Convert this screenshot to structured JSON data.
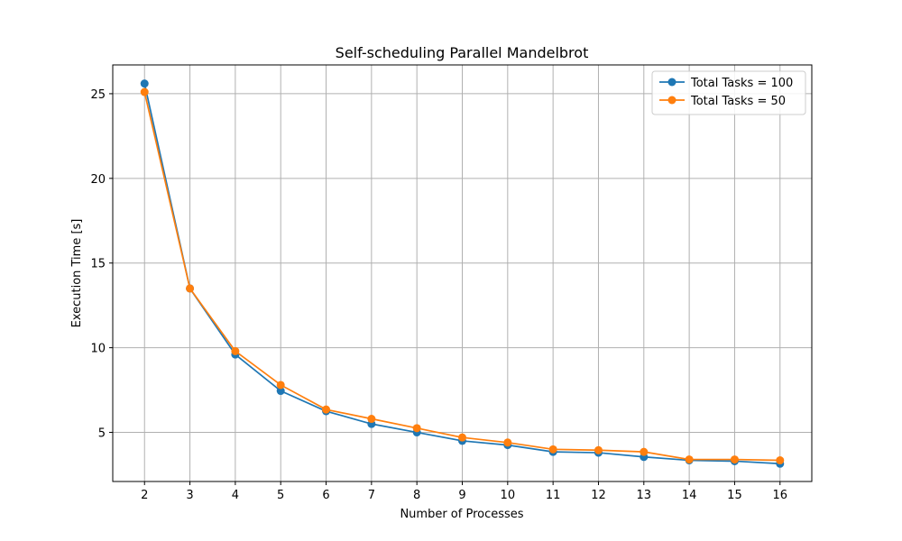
{
  "chart_data": {
    "type": "line",
    "title": "Self-scheduling Parallel Mandelbrot",
    "xlabel": "Number of Processes",
    "ylabel": "Execution Time [s]",
    "x": [
      2,
      3,
      4,
      5,
      6,
      7,
      8,
      9,
      10,
      11,
      12,
      13,
      14,
      15,
      16
    ],
    "xticks": [
      "2",
      "3",
      "4",
      "5",
      "6",
      "7",
      "8",
      "9",
      "10",
      "11",
      "12",
      "13",
      "14",
      "15",
      "16"
    ],
    "yticks": [
      5,
      10,
      15,
      20,
      25
    ],
    "xlim": [
      1.3,
      16.7
    ],
    "ylim": [
      2.1,
      26.7
    ],
    "grid": true,
    "legend_position": "top-right",
    "series": [
      {
        "name": "Total Tasks = 100",
        "color": "#1f77b4",
        "values": [
          25.6,
          13.5,
          9.6,
          7.45,
          6.25,
          5.5,
          5.0,
          4.5,
          4.25,
          3.85,
          3.8,
          3.55,
          3.35,
          3.3,
          3.15
        ]
      },
      {
        "name": "Total Tasks = 50",
        "color": "#ff7f0e",
        "values": [
          25.1,
          13.5,
          9.8,
          7.8,
          6.35,
          5.8,
          5.25,
          4.7,
          4.4,
          4.0,
          3.95,
          3.85,
          3.4,
          3.4,
          3.35
        ]
      }
    ]
  }
}
